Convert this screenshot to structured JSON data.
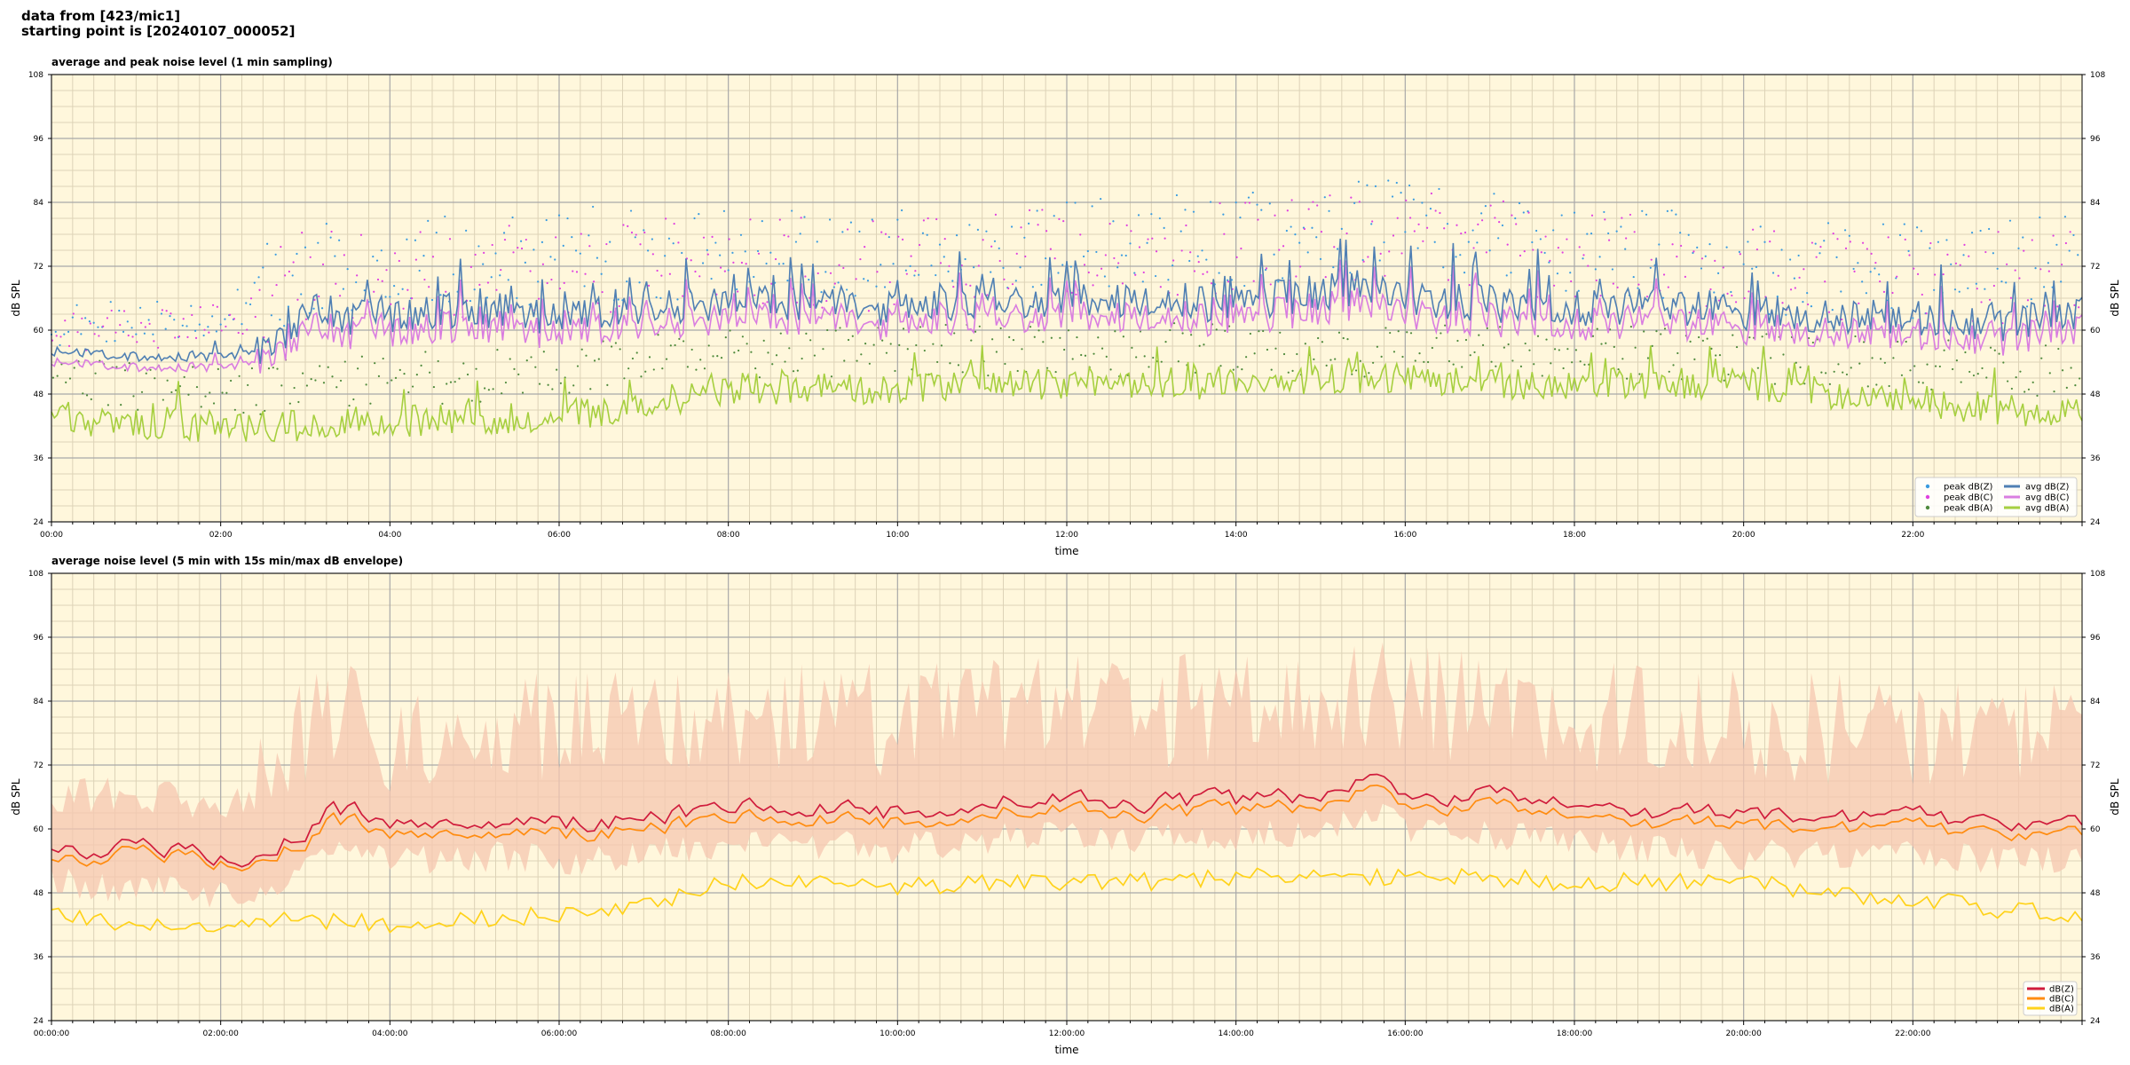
{
  "header": {
    "line1": "data from [423/mic1]",
    "line2": "starting point is [20240107_000052]"
  },
  "colors": {
    "plot_bg": "#fff7dc",
    "grid_major": "#a8a8a8",
    "grid_minor": "#ddd3b7",
    "peak_z": "#3a9be0",
    "peak_c": "#e040e0",
    "peak_a": "#4f8a3c",
    "avg_z": "#4f7fb3",
    "avg_c": "#d97de0",
    "avg_a": "#a6cf3f",
    "dbz": "#d01c3c",
    "dbc": "#ff8c10",
    "dba": "#ffd21a",
    "envelope": "#f6c7b0"
  },
  "chart_data": [
    {
      "type": "line",
      "title": "average and peak noise level (1 min sampling)",
      "xlabel": "time",
      "ylabel": "dB SPL",
      "ylim": [
        24,
        108
      ],
      "xlim": [
        "00:00",
        "24:00"
      ],
      "y_ticks": [
        "24",
        "36",
        "48",
        "60",
        "72",
        "84",
        "96",
        "108"
      ],
      "x_ticks": [
        "00:00",
        "02:00",
        "04:00",
        "06:00",
        "08:00",
        "10:00",
        "12:00",
        "14:00",
        "16:00",
        "18:00",
        "20:00",
        "22:00"
      ],
      "grid": true,
      "legend_position": "bottom-right",
      "legend": [
        {
          "label": "peak dB(Z)",
          "kind": "dot",
          "color_key": "peak_z"
        },
        {
          "label": "peak dB(C)",
          "kind": "dot",
          "color_key": "peak_c"
        },
        {
          "label": "peak dB(A)",
          "kind": "dot",
          "color_key": "peak_a"
        },
        {
          "label": "avg dB(Z)",
          "kind": "line",
          "color_key": "avg_z"
        },
        {
          "label": "avg dB(C)",
          "kind": "line",
          "color_key": "avg_c"
        },
        {
          "label": "avg dB(A)",
          "kind": "line",
          "color_key": "avg_a"
        }
      ],
      "series": [
        {
          "name": "avg dB(Z)",
          "x": [
            "00:00",
            "01:00",
            "02:00",
            "02:30",
            "03:00",
            "04:00",
            "05:00",
            "06:00",
            "07:00",
            "08:00",
            "09:00",
            "10:00",
            "11:00",
            "12:00",
            "13:00",
            "14:00",
            "15:00",
            "15:30",
            "16:00",
            "17:00",
            "18:00",
            "19:00",
            "20:00",
            "21:00",
            "22:00",
            "23:00",
            "24:00"
          ],
          "y": [
            56,
            55,
            55,
            56,
            62,
            63,
            64,
            62,
            64,
            65,
            65,
            64,
            65,
            66,
            65,
            65,
            67,
            68,
            66,
            65,
            64,
            65,
            63,
            63,
            62,
            61,
            63
          ]
        },
        {
          "name": "avg dB(C)",
          "x": [
            "00:00",
            "01:00",
            "02:00",
            "02:30",
            "03:00",
            "04:00",
            "05:00",
            "06:00",
            "07:00",
            "08:00",
            "09:00",
            "10:00",
            "11:00",
            "12:00",
            "13:00",
            "14:00",
            "15:00",
            "15:30",
            "16:00",
            "17:00",
            "18:00",
            "19:00",
            "20:00",
            "21:00",
            "22:00",
            "23:00",
            "24:00"
          ],
          "y": [
            55,
            54,
            54,
            55,
            60,
            61,
            62,
            60,
            62,
            63,
            63,
            62,
            63,
            64,
            63,
            63,
            65,
            66,
            64,
            63,
            62,
            63,
            61,
            61,
            60,
            59,
            61
          ]
        },
        {
          "name": "avg dB(A)",
          "x": [
            "00:00",
            "01:00",
            "02:00",
            "03:00",
            "04:00",
            "05:00",
            "06:00",
            "07:00",
            "08:00",
            "09:00",
            "10:00",
            "11:00",
            "12:00",
            "13:00",
            "14:00",
            "15:00",
            "16:00",
            "17:00",
            "18:00",
            "19:00",
            "20:00",
            "21:00",
            "22:00",
            "23:00",
            "24:00"
          ],
          "y": [
            44,
            42,
            42,
            42,
            43,
            43,
            44,
            46,
            49,
            49,
            49,
            50,
            50,
            50,
            50,
            51,
            51,
            50,
            50,
            50,
            50,
            48,
            47,
            45,
            44
          ]
        },
        {
          "name": "peak dB(Z)",
          "x": [
            "00:00",
            "02:00",
            "03:00",
            "06:00",
            "08:00",
            "10:00",
            "12:00",
            "14:00",
            "15:30",
            "18:00",
            "20:00",
            "22:00",
            "24:00"
          ],
          "y": [
            61,
            62,
            72,
            74,
            75,
            74,
            76,
            77,
            80,
            76,
            72,
            71,
            73
          ]
        },
        {
          "name": "peak dB(C)",
          "x": [
            "00:00",
            "02:00",
            "03:00",
            "06:00",
            "08:00",
            "10:00",
            "12:00",
            "14:00",
            "15:30",
            "18:00",
            "20:00",
            "22:00",
            "24:00"
          ],
          "y": [
            60,
            61,
            70,
            72,
            73,
            72,
            74,
            75,
            78,
            74,
            70,
            69,
            71
          ]
        },
        {
          "name": "peak dB(A)",
          "x": [
            "00:00",
            "02:00",
            "03:00",
            "06:00",
            "08:00",
            "10:00",
            "12:00",
            "14:00",
            "16:00",
            "18:00",
            "20:00",
            "22:00",
            "24:00"
          ],
          "y": [
            50,
            48,
            50,
            52,
            56,
            56,
            56,
            57,
            56,
            56,
            55,
            54,
            52
          ]
        }
      ]
    },
    {
      "type": "line",
      "title": "average noise level (5 min with 15s min/max dB envelope)",
      "xlabel": "time",
      "ylabel": "dB SPL",
      "ylim": [
        24,
        108
      ],
      "xlim": [
        "00:00:00",
        "24:00:00"
      ],
      "y_ticks": [
        "24",
        "36",
        "48",
        "60",
        "72",
        "84",
        "96",
        "108"
      ],
      "x_ticks": [
        "00:00:00",
        "02:00:00",
        "04:00:00",
        "06:00:00",
        "08:00:00",
        "10:00:00",
        "12:00:00",
        "14:00:00",
        "16:00:00",
        "18:00:00",
        "20:00:00",
        "22:00:00"
      ],
      "grid": true,
      "legend_position": "bottom-right",
      "legend": [
        {
          "label": "dB(Z)",
          "kind": "line",
          "color_key": "dbz"
        },
        {
          "label": "dB(C)",
          "kind": "line",
          "color_key": "dbc"
        },
        {
          "label": "dB(A)",
          "kind": "line",
          "color_key": "dba"
        }
      ],
      "series": [
        {
          "name": "dB(Z)",
          "x": [
            "00:00",
            "01:00",
            "02:00",
            "02:30",
            "03:00",
            "03:20",
            "04:00",
            "05:00",
            "06:00",
            "07:00",
            "08:00",
            "09:00",
            "10:00",
            "11:00",
            "12:00",
            "13:00",
            "14:00",
            "15:00",
            "15:45",
            "16:00",
            "17:00",
            "18:00",
            "19:00",
            "20:00",
            "21:00",
            "22:00",
            "23:00",
            "24:00"
          ],
          "y": [
            57,
            56,
            55,
            56,
            60,
            64,
            61,
            62,
            61,
            62,
            64,
            64,
            63,
            65,
            66,
            65,
            65,
            67,
            70,
            67,
            66,
            64,
            63,
            62,
            62,
            62,
            61,
            62
          ]
        },
        {
          "name": "dB(C)",
          "x": [
            "00:00",
            "01:00",
            "02:00",
            "02:30",
            "03:00",
            "03:20",
            "04:00",
            "05:00",
            "06:00",
            "07:00",
            "08:00",
            "09:00",
            "10:00",
            "11:00",
            "12:00",
            "13:00",
            "14:00",
            "15:00",
            "15:45",
            "16:00",
            "17:00",
            "18:00",
            "19:00",
            "20:00",
            "21:00",
            "22:00",
            "23:00",
            "24:00"
          ],
          "y": [
            55,
            55,
            54,
            55,
            58,
            62,
            59,
            60,
            59,
            60,
            62,
            62,
            61,
            63,
            64,
            63,
            63,
            65,
            68,
            65,
            64,
            62,
            61,
            60,
            60,
            60,
            59,
            60
          ]
        },
        {
          "name": "dB(A)",
          "x": [
            "00:00",
            "01:00",
            "02:00",
            "03:00",
            "04:00",
            "05:00",
            "06:00",
            "07:00",
            "08:00",
            "09:00",
            "10:00",
            "11:00",
            "12:00",
            "13:00",
            "14:00",
            "15:00",
            "16:00",
            "17:00",
            "18:00",
            "19:00",
            "20:00",
            "21:00",
            "22:00",
            "23:00",
            "24:00"
          ],
          "y": [
            44,
            42,
            42,
            43,
            42,
            43,
            44,
            46,
            50,
            50,
            49,
            50,
            50,
            50,
            51,
            51,
            51,
            51,
            50,
            50,
            50,
            48,
            47,
            45,
            44
          ]
        }
      ]
    }
  ]
}
